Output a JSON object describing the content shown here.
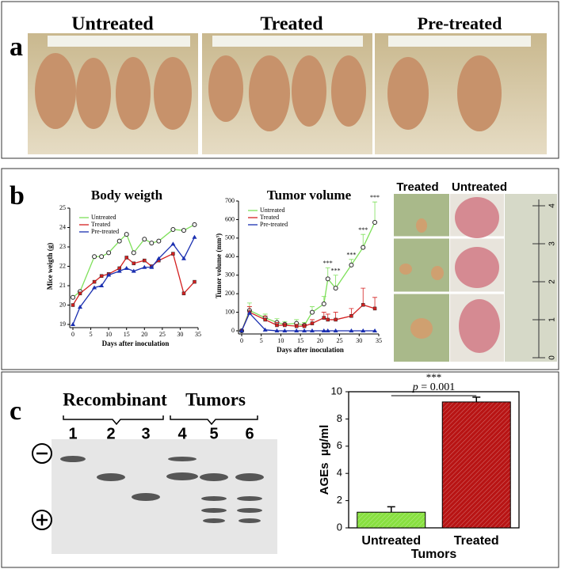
{
  "panels": {
    "a": {
      "label": "a",
      "groups": [
        "Untreated",
        "Treated",
        "Pre-treated"
      ]
    },
    "b": {
      "label": "b",
      "photo_labels": [
        "Treated",
        "Untreated"
      ],
      "ruler_ticks": [
        0,
        1,
        2,
        3,
        4
      ]
    },
    "c": {
      "label": "c",
      "gel_groups": [
        "Recombinant",
        "Tumors"
      ],
      "lanes": [
        "1",
        "2",
        "3",
        "4",
        "5",
        "6"
      ]
    }
  },
  "chart_data": [
    {
      "type": "line",
      "title": "Body weigth",
      "xlabel": "Days after inoculation",
      "ylabel": "Mice weigth (g)",
      "xlim": [
        0,
        35
      ],
      "xticks": [
        0,
        5,
        10,
        15,
        20,
        25,
        30,
        35
      ],
      "ylim": [
        19,
        25
      ],
      "yticks": [
        19,
        20,
        21,
        22,
        23,
        24,
        25
      ],
      "legend": "upper left",
      "x": [
        0,
        2,
        6,
        8,
        10,
        13,
        15,
        17,
        20,
        22,
        24,
        28,
        31,
        34
      ],
      "series": [
        {
          "name": "Untreated",
          "color": "#7ee05a",
          "marker": "circle",
          "values": [
            20.4,
            20.7,
            22.5,
            22.5,
            22.7,
            23.3,
            23.65,
            22.7,
            23.4,
            23.2,
            23.3,
            23.9,
            23.85,
            24.15
          ]
        },
        {
          "name": "Treated",
          "color": "#d42020",
          "marker": "square",
          "values": [
            20.0,
            20.6,
            21.2,
            21.5,
            21.6,
            21.9,
            22.45,
            22.15,
            22.3,
            22.0,
            22.3,
            22.65,
            20.6,
            21.2
          ]
        },
        {
          "name": "Pre-treated",
          "color": "#1a2fb0",
          "marker": "triangle",
          "values": [
            19.0,
            19.9,
            20.9,
            21.0,
            21.55,
            21.75,
            21.9,
            21.75,
            21.95,
            21.95,
            22.4,
            23.15,
            22.4,
            23.5
          ]
        }
      ]
    },
    {
      "type": "line",
      "title": "Tumor volume",
      "xlabel": "Days after inoculation",
      "ylabel": "Tumor volume (mm³)",
      "xlim": [
        0,
        35
      ],
      "xticks": [
        0,
        5,
        10,
        15,
        20,
        25,
        30,
        35
      ],
      "ylim": [
        0,
        700
      ],
      "yticks": [
        0,
        100,
        200,
        300,
        400,
        500,
        600,
        700
      ],
      "legend": "upper left",
      "x": [
        0,
        2,
        6,
        9,
        11,
        14,
        16,
        18,
        21,
        22,
        24,
        28,
        31,
        34
      ],
      "series": [
        {
          "name": "Untreated",
          "color": "#7ee05a",
          "marker": "circle",
          "values": [
            0,
            110,
            70,
            45,
            35,
            40,
            30,
            100,
            145,
            280,
            230,
            355,
            450,
            585
          ],
          "errors": [
            null,
            40,
            20,
            20,
            15,
            20,
            15,
            30,
            40,
            60,
            70,
            30,
            70,
            110
          ]
        },
        {
          "name": "Treated",
          "color": "#d42020",
          "marker": "square",
          "values": [
            0,
            100,
            60,
            30,
            30,
            25,
            25,
            40,
            70,
            60,
            60,
            80,
            140,
            120
          ],
          "errors": [
            null,
            30,
            20,
            15,
            10,
            10,
            10,
            20,
            30,
            30,
            40,
            40,
            90,
            60
          ]
        },
        {
          "name": "Pre-treated",
          "color": "#1a2fb0",
          "marker": "triangle",
          "values": [
            0,
            95,
            5,
            0,
            0,
            0,
            0,
            0,
            0,
            0,
            0,
            0,
            0,
            0
          ]
        }
      ],
      "annotations": [
        {
          "text": "***",
          "x": 22
        },
        {
          "text": "***",
          "x": 24
        },
        {
          "text": "***",
          "x": 28
        },
        {
          "text": "***",
          "x": 31
        },
        {
          "text": "***",
          "x": 34
        }
      ]
    },
    {
      "type": "bar",
      "xlabel": "Tumors",
      "ylabel": "AGEs  µg/ml",
      "categories": [
        "Untreated",
        "Treated"
      ],
      "values": [
        1.15,
        9.25
      ],
      "errors": [
        0.4,
        0.35
      ],
      "colors": [
        "#88e040",
        "#b81414"
      ],
      "ylim": [
        0,
        10
      ],
      "yticks": [
        0,
        2,
        4,
        6,
        8,
        10
      ],
      "annotation": {
        "stars": "***",
        "symbol": "p",
        "value_text": "= 0.001"
      }
    }
  ]
}
